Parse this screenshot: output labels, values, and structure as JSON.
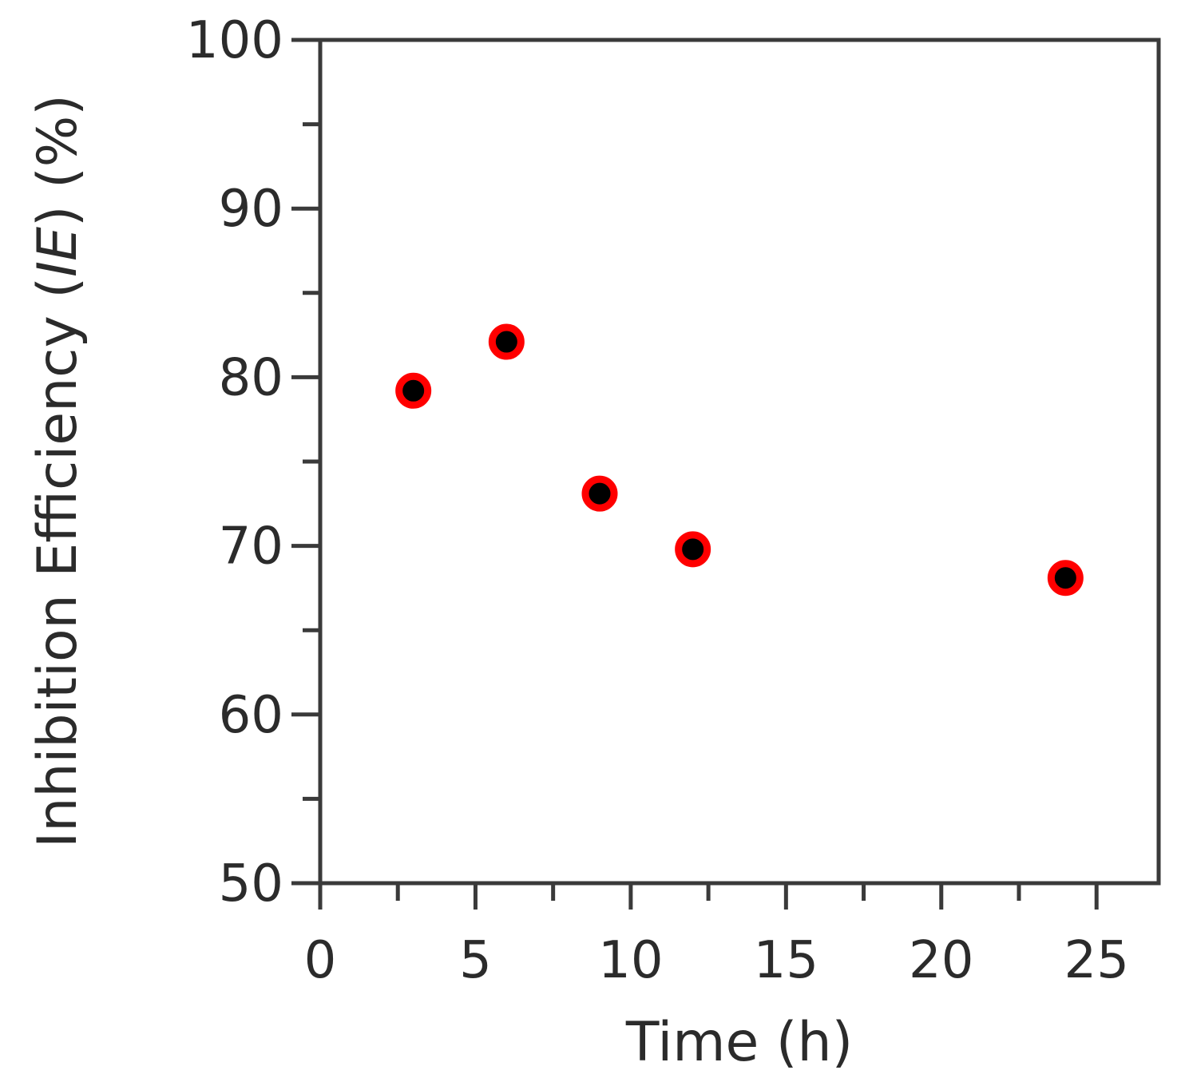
{
  "chart_data": {
    "type": "scatter",
    "title": "",
    "xlabel": "Time (h)",
    "ylabel": {
      "prefix": "Inhibition Efficiency (",
      "italic": "IE",
      "suffix": ") (%)"
    },
    "xlim": [
      0,
      27
    ],
    "ylim": [
      50,
      100
    ],
    "x_ticks": [
      0,
      5,
      10,
      15,
      20,
      25
    ],
    "x_tick_labels": [
      "0",
      "5",
      "10",
      "15",
      "20",
      "25"
    ],
    "x_minor_ticks": [
      2.5,
      7.5,
      12.5,
      17.5,
      22.5
    ],
    "y_ticks": [
      50,
      60,
      70,
      80,
      90,
      100
    ],
    "y_tick_labels": [
      "50",
      "60",
      "70",
      "80",
      "90",
      "100"
    ],
    "y_minor_ticks": [
      55,
      65,
      75,
      85,
      95
    ],
    "grid": false,
    "legend": "none",
    "marker": {
      "fill": "#000000",
      "edge": "#ff0000"
    },
    "series": [
      {
        "x": [
          3,
          6,
          9,
          12,
          24
        ],
        "y": [
          79.2,
          82.1,
          73.1,
          69.8,
          68.1
        ]
      }
    ]
  }
}
